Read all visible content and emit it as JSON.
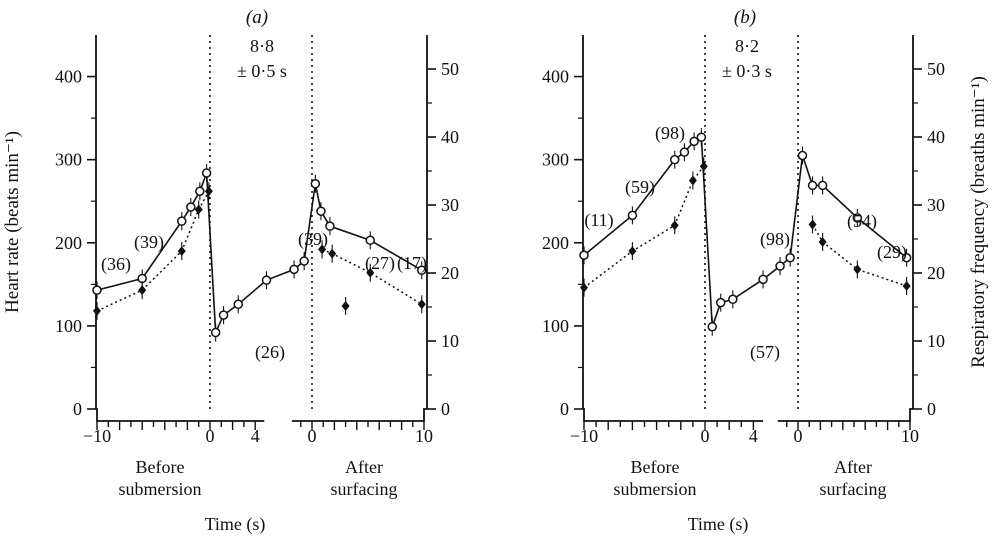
{
  "figure": {
    "shared_ylabel_left": "Heart rate (beats min⁻¹)",
    "shared_ylabel_right": "Respiratory frequency (breaths min⁻¹)"
  },
  "chart_data": [
    {
      "type": "line",
      "panel_label": "(a)",
      "annotation_mean": "8·8",
      "annotation_sd": "± 0·5 s",
      "xlabel": "Time (s)",
      "segment_labels": [
        [
          "Before",
          "submersion"
        ],
        [
          "After",
          "surfacing"
        ]
      ],
      "before_ticks": [
        "−10",
        "0",
        "4"
      ],
      "after_ticks": [
        "0",
        "10"
      ],
      "ylim_left": [
        0,
        450
      ],
      "ylim_right": [
        0,
        55
      ],
      "yticks_left": [
        "0",
        "100",
        "200",
        "300",
        "400"
      ],
      "yticks_right": [
        "0",
        "10",
        "20",
        "30",
        "40",
        "50"
      ],
      "grid": false,
      "series": [
        {
          "style": "solid-open-circles",
          "axis": "left",
          "before": {
            "x": [
              -10,
              -6,
              -2.5,
              -1.7,
              -0.9,
              -0.3
            ],
            "y": [
              143,
              157,
              226,
              243,
              262,
              284
            ]
          },
          "after": {
            "x": [
              0.3,
              0.8,
              1.6,
              5.2,
              9.8
            ],
            "y": [
              271,
              238,
              220,
              203,
              167
            ]
          },
          "between": {
            "x": [
              0.5,
              1.2,
              2.5,
              5.0
            ],
            "y": [
              92,
              113,
              126,
              155
            ]
          },
          "pre_surface": {
            "x": [
              -1.6,
              -0.7
            ],
            "y": [
              168,
              178
            ]
          }
        },
        {
          "style": "dotted-filled-diamonds",
          "axis": "left",
          "before": {
            "x": [
              -10,
              -6,
              -2.5,
              -1.0,
              -0.1
            ],
            "y": [
              118,
              143,
              190,
              240,
              262
            ]
          },
          "after": {
            "x": [
              0.9,
              1.8,
              5.2,
              9.8
            ],
            "y": [
              192,
              187,
              164,
              126
            ]
          },
          "extra_points": {
            "x": [
              3.0
            ],
            "y": [
              124
            ]
          }
        }
      ],
      "annotations": [
        "(36)",
        "(39)",
        "(26)",
        "(39)",
        "(27)",
        "(17)"
      ]
    },
    {
      "type": "line",
      "panel_label": "(b)",
      "annotation_mean": "8·2",
      "annotation_sd": "± 0·3 s",
      "xlabel": "Time (s)",
      "segment_labels": [
        [
          "Before",
          "submersion"
        ],
        [
          "After",
          "surfacing"
        ]
      ],
      "before_ticks": [
        "−10",
        "0",
        "4"
      ],
      "after_ticks": [
        "0",
        "10"
      ],
      "ylim_left": [
        0,
        450
      ],
      "ylim_right": [
        0,
        55
      ],
      "yticks_left": [
        "0",
        "100",
        "200",
        "300",
        "400"
      ],
      "yticks_right": [
        "0",
        "10",
        "20",
        "30",
        "40",
        "50"
      ],
      "grid": false,
      "series": [
        {
          "style": "solid-open-circles",
          "axis": "left",
          "before": {
            "x": [
              -10,
              -6,
              -2.5,
              -1.7,
              -0.9,
              -0.3
            ],
            "y": [
              185,
              233,
              300,
              309,
              322,
              327
            ]
          },
          "after": {
            "x": [
              0.4,
              1.3,
              2.2,
              5.3,
              9.7
            ],
            "y": [
              305,
              269,
              269,
              230,
              182
            ]
          },
          "between": {
            "x": [
              0.6,
              1.3,
              2.3,
              4.8
            ],
            "y": [
              99,
              128,
              132,
              156
            ]
          },
          "pre_surface": {
            "x": [
              -1.6,
              -0.7
            ],
            "y": [
              172,
              182
            ]
          }
        },
        {
          "style": "dotted-filled-diamonds",
          "axis": "left",
          "before": {
            "x": [
              -10,
              -6,
              -2.5,
              -1.0,
              -0.1
            ],
            "y": [
              146,
              190,
              221,
              275,
              292
            ]
          },
          "after": {
            "x": [
              1.3,
              2.2,
              5.3,
              9.7
            ],
            "y": [
              222,
              201,
              168,
              148
            ]
          }
        }
      ],
      "annotations": [
        "(11)",
        "(59)",
        "(98)",
        "(98)",
        "(57)",
        "(54)",
        "(29)"
      ]
    }
  ]
}
